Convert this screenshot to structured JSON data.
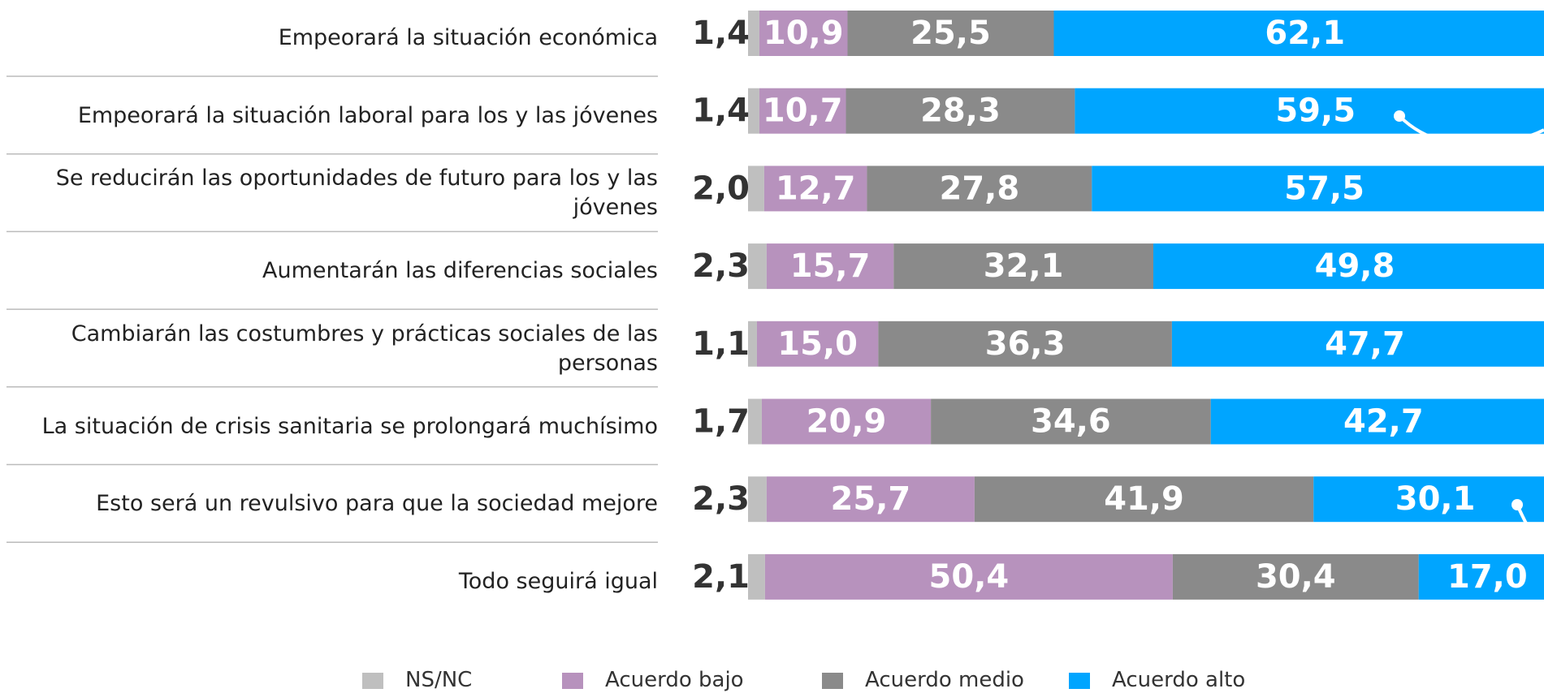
{
  "chart_data": {
    "type": "stacked_bar_horizontal",
    "categories": [
      "Empeorará la situación económica",
      "Empeorará la situación laboral para los y las jóvenes",
      "Se reducirán las oportunidades de futuro para los y las jóvenes",
      "Aumentarán las diferencias sociales",
      "Cambiarán las costumbres y prácticas sociales de las personas",
      "La situación de crisis sanitaria se prolongará muchísimo",
      "Esto será un revulsivo para que la sociedad mejore",
      "Todo seguirá igual"
    ],
    "series": [
      {
        "name": "NS/NC",
        "color": "#bfbfbf",
        "values": [
          1.4,
          1.4,
          2.0,
          2.3,
          1.1,
          1.7,
          2.3,
          2.1
        ],
        "value_labels": [
          "1,4",
          "1,4",
          "2,0",
          "2,3",
          "1,1",
          "1,7",
          "2,3",
          "2,1"
        ]
      },
      {
        "name": "Acuerdo bajo",
        "color": "#b792bd",
        "values": [
          10.9,
          10.7,
          12.7,
          15.7,
          15.0,
          20.9,
          25.7,
          50.4
        ],
        "value_labels": [
          "10,9",
          "10,7",
          "12,7",
          "15,7",
          "15,0",
          "20,9",
          "25,7",
          "50,4"
        ]
      },
      {
        "name": "Acuerdo medio",
        "color": "#8a8a8a",
        "values": [
          25.5,
          28.3,
          27.8,
          32.1,
          36.3,
          34.6,
          41.9,
          30.4
        ],
        "value_labels": [
          "25,5",
          "28,3",
          "27,8",
          "32,1",
          "36,3",
          "34,6",
          "41,9",
          "30,4"
        ]
      },
      {
        "name": "Acuerdo alto",
        "color": "#00a5ff",
        "values": [
          62.1,
          59.5,
          57.5,
          49.8,
          47.7,
          42.7,
          30.1,
          17.0
        ],
        "value_labels": [
          "62,1",
          "59,5",
          "57,5",
          "49,8",
          "47,7",
          "42,7",
          "30,1",
          "17,0"
        ]
      }
    ],
    "xlim": [
      0,
      100
    ]
  }
}
